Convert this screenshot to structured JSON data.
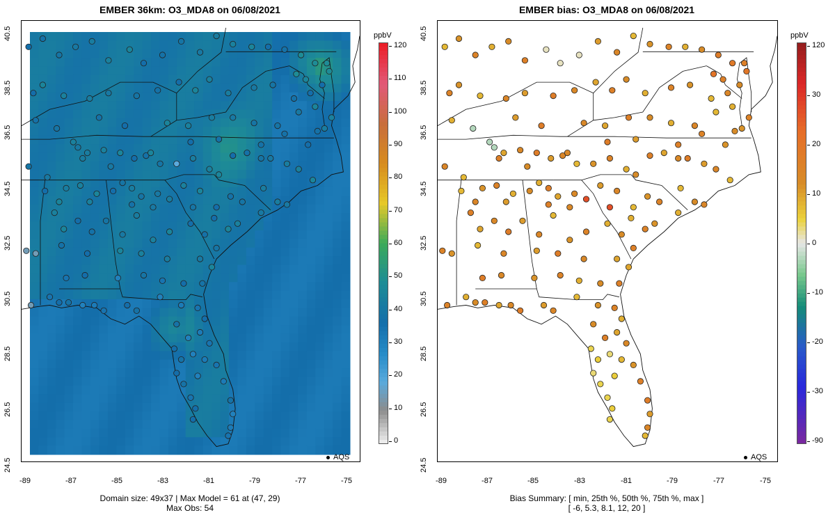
{
  "left_panel": {
    "title": "EMBER 36km: O3_MDA8 on 06/08/2021",
    "colorbar_unit": "ppbV",
    "colorbar_labels": [
      "120",
      "110",
      "100",
      "90",
      "80",
      "70",
      "60",
      "50",
      "40",
      "30",
      "20",
      "10",
      "0"
    ],
    "legend_label": "AQS",
    "footer_line1": "Domain size: 49x37 | Max Model = 61 at (47, 29)",
    "footer_line2": "Max Obs: 54"
  },
  "right_panel": {
    "title": "EMBER bias: O3_MDA8 on 06/08/2021",
    "colorbar_unit": "ppbV",
    "colorbar_labels": [
      "120",
      "30",
      "20",
      "10",
      "0",
      "-10",
      "-20",
      "-30",
      "-90"
    ],
    "legend_label": "AQS",
    "footer_line1": "Bias Summary: [ min, 25th %, 50th %, 75th %, max ]",
    "footer_line2": "[ -6,   5.3,   8.1,   12,   20 ]"
  },
  "axes": {
    "y_ticks": [
      "40.5",
      "38.5",
      "36.5",
      "34.5",
      "32.5",
      "30.5",
      "28.5",
      "26.5",
      "24.5"
    ],
    "x_ticks": [
      "-89",
      "-87",
      "-85",
      "-83",
      "-81",
      "-79",
      "-77",
      "-75"
    ]
  },
  "chart_data": [
    {
      "type": "heatmap",
      "title": "EMBER 36km: O3_MDA8 on 06/08/2021",
      "variable": "O3_MDA8",
      "units": "ppbV",
      "xlim": [
        -89.2,
        -74.8
      ],
      "ylim": [
        24.5,
        40.7
      ],
      "color_range": [
        0,
        120
      ],
      "grid_size": "49x37",
      "max_model": 61,
      "max_obs": 54,
      "field_summary": "Model ozone mostly 30-45 ppbV over the southeastern US; higher 50-61 ppbV near Chesapeake Bay, northern Virginia and central North Carolina; observation sites 25-54 ppbV"
    },
    {
      "type": "scatter",
      "title": "EMBER bias: O3_MDA8 on 06/08/2021",
      "variable": "O3_MDA8 bias",
      "units": "ppbV",
      "xlim": [
        -89.2,
        -74.8
      ],
      "ylim": [
        24.5,
        40.7
      ],
      "color_range": [
        -90,
        120
      ],
      "bias_summary": {
        "min": -6,
        "p25": 5.3,
        "p50": 8.1,
        "p75": 12,
        "max": 20
      }
    }
  ]
}
